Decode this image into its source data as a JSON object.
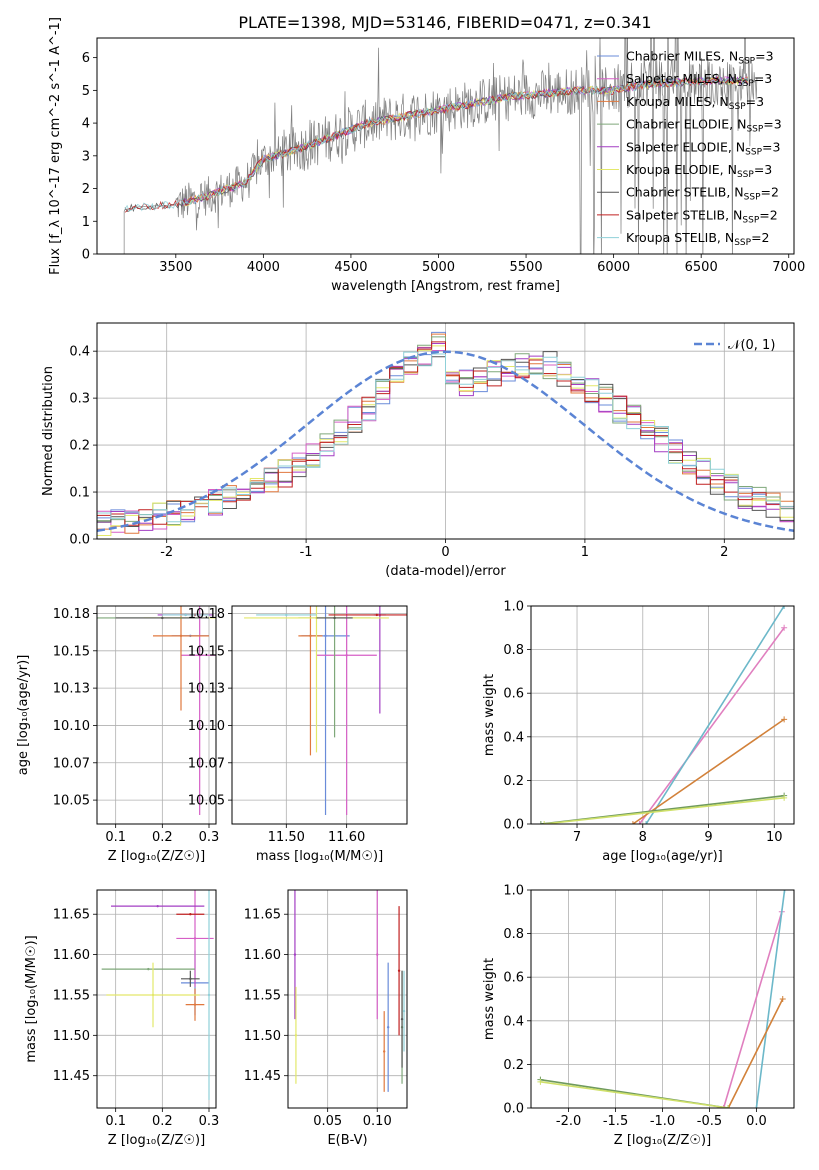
{
  "figure": {
    "title": "PLATE=1398, MJD=53146, FIBERID=0471, z=0.341"
  },
  "series_colors": [
    "#6a8bd9",
    "#d65fc6",
    "#e0783e",
    "#7fa87a",
    "#a33fc4",
    "#e3e86a",
    "#555555",
    "#c02020",
    "#8fd0d8"
  ],
  "chart_data": [
    {
      "panel": "spectrum",
      "type": "line",
      "title": "PLATE=1398, MJD=53146, FIBERID=0471, z=0.341",
      "xlabel": "wavelength [Angstrom, rest frame]",
      "ylabel": "Flux [f_λ 10^-17 erg cm^-2 s^-1 A^-1]",
      "xlim": [
        3050,
        7030
      ],
      "ylim": [
        0,
        6.6
      ],
      "xticks": [
        3500,
        4000,
        4500,
        5000,
        5500,
        6000,
        6500,
        7000
      ],
      "yticks": [
        0,
        1,
        2,
        3,
        4,
        5,
        6
      ],
      "legend_position": "right",
      "legend": [
        {
          "label": "Chabrier MILES, N",
          "sub": "SSP",
          "tail": "=3"
        },
        {
          "label": "Salpeter MILES, N",
          "sub": "SSP",
          "tail": "=3"
        },
        {
          "label": "Kroupa MILES, N",
          "sub": "SSP",
          "tail": "=3"
        },
        {
          "label": "Chabrier ELODIE, N",
          "sub": "SSP",
          "tail": "=3"
        },
        {
          "label": "Salpeter ELODIE, N",
          "sub": "SSP",
          "tail": "=3"
        },
        {
          "label": "Kroupa ELODIE, N",
          "sub": "SSP",
          "tail": "=3"
        },
        {
          "label": "Chabrier STELIB, N",
          "sub": "SSP",
          "tail": "=2"
        },
        {
          "label": "Salpeter STELIB, N",
          "sub": "SSP",
          "tail": "=2"
        },
        {
          "label": "Kroupa STELIB, N",
          "sub": "SSP",
          "tail": "=2"
        }
      ],
      "data_trend": [
        [
          3200,
          1.35
        ],
        [
          3300,
          1.45
        ],
        [
          3500,
          1.5
        ],
        [
          3700,
          1.8
        ],
        [
          3900,
          2.2
        ],
        [
          4000,
          2.9
        ],
        [
          4200,
          3.2
        ],
        [
          4400,
          3.6
        ],
        [
          4600,
          4.0
        ],
        [
          4800,
          4.2
        ],
        [
          5000,
          4.4
        ],
        [
          5200,
          4.6
        ],
        [
          5400,
          4.8
        ],
        [
          5600,
          4.9
        ],
        [
          5800,
          5.0
        ],
        [
          6000,
          5.0
        ],
        [
          6200,
          5.2
        ],
        [
          6400,
          5.25
        ],
        [
          6600,
          5.3
        ],
        [
          6800,
          5.3
        ]
      ]
    },
    {
      "panel": "residual_histogram",
      "type": "histogram",
      "xlabel": "(data-model)/error",
      "ylabel": "Normed distribution",
      "xlim": [
        -2.5,
        2.5
      ],
      "ylim": [
        0,
        0.46
      ],
      "xticks": [
        -2,
        -1,
        0,
        1,
        2
      ],
      "yticks": [
        0.0,
        0.1,
        0.2,
        0.3,
        0.4
      ],
      "legend_position": "top-right",
      "reference_curve": {
        "label": "𝒩(0, 1)",
        "mean": 0,
        "sigma": 1
      },
      "bin_width": 0.1,
      "base_histogram": [
        0.035,
        0.038,
        0.04,
        0.045,
        0.05,
        0.058,
        0.065,
        0.072,
        0.078,
        0.085,
        0.095,
        0.11,
        0.125,
        0.14,
        0.16,
        0.18,
        0.2,
        0.23,
        0.255,
        0.28,
        0.31,
        0.34,
        0.37,
        0.39,
        0.41,
        0.36,
        0.33,
        0.34,
        0.35,
        0.36,
        0.37,
        0.38,
        0.37,
        0.35,
        0.33,
        0.32,
        0.3,
        0.275,
        0.255,
        0.235,
        0.21,
        0.19,
        0.165,
        0.145,
        0.125,
        0.11,
        0.095,
        0.082,
        0.07,
        0.055
      ]
    },
    {
      "panel": "age_vs_Z",
      "type": "errorbar",
      "xlabel": "Z [log₁₀(Z/Z☉)]",
      "ylabel": "age  [log₁₀(age/yr)]",
      "xlim": [
        0.06,
        0.315
      ],
      "ylim": [
        10.034,
        10.18
      ],
      "xticks": [
        0.1,
        0.2,
        0.3
      ],
      "yticks": [
        10.05,
        10.075,
        10.1,
        10.125,
        10.15,
        10.175
      ],
      "points": [
        {
          "x": 0.26,
          "y": 10.16,
          "xerr": 0.04,
          "yerr": 0.0
        },
        {
          "x": 0.28,
          "y": 10.147,
          "xerr": 0.04,
          "yerr": 0.107
        },
        {
          "x": 0.24,
          "y": 10.16,
          "xerr": 0.06,
          "yerr": 0.05
        },
        {
          "x": 0.2,
          "y": 10.172,
          "xerr": 0.14,
          "yerr": 0.0
        },
        {
          "x": 0.25,
          "y": 10.174,
          "xerr": 0.06,
          "yerr": 0.0
        },
        {
          "x": 0.24,
          "y": 10.172,
          "xerr": 0.08,
          "yerr": 0.0
        },
        {
          "x": 0.2,
          "y": 10.172,
          "xerr": 0.1,
          "yerr": 0.0
        },
        {
          "x": 0.27,
          "y": 10.174,
          "xerr": 0.03,
          "yerr": 0.0
        },
        {
          "x": 0.25,
          "y": 10.174,
          "xerr": 0.05,
          "yerr": 0.0
        }
      ]
    },
    {
      "panel": "age_vs_mass",
      "type": "errorbar",
      "xlabel": "mass [log₁₀(M/M☉)]",
      "ylabel": "",
      "xlim": [
        11.41,
        11.7
      ],
      "ylim": [
        10.034,
        10.18
      ],
      "xticks": [
        11.5,
        11.6
      ],
      "yticks": [
        10.05,
        10.075,
        10.1,
        10.125,
        10.15,
        10.175
      ],
      "points": [
        {
          "x": 11.565,
          "y": 10.16,
          "xerr": 0.04,
          "yerr": 0.12
        },
        {
          "x": 11.6,
          "y": 10.147,
          "xerr": 0.05,
          "yerr": 0.107
        },
        {
          "x": 11.54,
          "y": 10.16,
          "xerr": 0.02,
          "yerr": 0.08
        },
        {
          "x": 11.58,
          "y": 10.172,
          "xerr": 0.06,
          "yerr": 0.08
        },
        {
          "x": 11.655,
          "y": 10.174,
          "xerr": 0.01,
          "yerr": 0.066
        },
        {
          "x": 11.55,
          "y": 10.172,
          "xerr": 0.12,
          "yerr": 0.09
        },
        {
          "x": 11.58,
          "y": 10.172,
          "xerr": 0.03,
          "yerr": 0.0
        },
        {
          "x": 11.65,
          "y": 10.174,
          "xerr": 0.08,
          "yerr": 0.0
        },
        {
          "x": 11.5,
          "y": 10.174,
          "xerr": 0.05,
          "yerr": 0.0
        }
      ]
    },
    {
      "panel": "mass_weight_vs_age",
      "type": "line",
      "xlabel": "age  [log₁₀(age/yr)]",
      "ylabel": "mass weight",
      "xlim": [
        6.3,
        10.3
      ],
      "ylim": [
        0,
        1
      ],
      "xticks": [
        7,
        8,
        9,
        10
      ],
      "yticks": [
        0.0,
        0.2,
        0.4,
        0.6,
        0.8,
        1.0
      ],
      "series": [
        {
          "points": [
            [
              7.95,
              0.0
            ],
            [
              10.15,
              0.9
            ]
          ]
        },
        {
          "points": [
            [
              8.05,
              0.0
            ],
            [
              10.15,
              1.0
            ]
          ]
        },
        {
          "points": [
            [
              7.85,
              0.0
            ],
            [
              10.15,
              0.48
            ]
          ]
        },
        {
          "points": [
            [
              6.45,
              0.0
            ],
            [
              10.15,
              0.13
            ]
          ]
        },
        {
          "points": [
            [
              6.5,
              0.0
            ],
            [
              10.15,
              0.12
            ]
          ]
        }
      ]
    },
    {
      "panel": "mass_vs_Z",
      "type": "errorbar",
      "xlabel": "Z [log₁₀(Z/Z☉)]",
      "ylabel": "mass [log₁₀(M/M☉)]",
      "xlim": [
        0.06,
        0.315
      ],
      "ylim": [
        11.41,
        11.68
      ],
      "xticks": [
        0.1,
        0.2,
        0.3
      ],
      "yticks": [
        11.45,
        11.5,
        11.55,
        11.6,
        11.65
      ],
      "points": [
        {
          "x": 0.27,
          "y": 11.565,
          "xerr": 0.03,
          "yerr": 0.04
        },
        {
          "x": 0.27,
          "y": 11.62,
          "xerr": 0.04,
          "yerr": 0.06
        },
        {
          "x": 0.27,
          "y": 11.538,
          "xerr": 0.02,
          "yerr": 0.02
        },
        {
          "x": 0.17,
          "y": 11.582,
          "xerr": 0.1,
          "yerr": 0.0
        },
        {
          "x": 0.19,
          "y": 11.66,
          "xerr": 0.1,
          "yerr": 0.0
        },
        {
          "x": 0.18,
          "y": 11.55,
          "xerr": 0.1,
          "yerr": 0.04
        },
        {
          "x": 0.26,
          "y": 11.57,
          "xerr": 0.02,
          "yerr": 0.01
        },
        {
          "x": 0.26,
          "y": 11.65,
          "xerr": 0.03,
          "yerr": 0.0
        },
        {
          "x": 0.3,
          "y": 11.55,
          "xerr": 0.0,
          "yerr": 0.13
        }
      ]
    },
    {
      "panel": "mass_vs_ebv",
      "type": "errorbar",
      "xlabel": "E(B-V)",
      "ylabel": "",
      "xlim": [
        0.01,
        0.13
      ],
      "ylim": [
        11.41,
        11.68
      ],
      "xticks": [
        0.05,
        0.1
      ],
      "yticks": [
        11.45,
        11.5,
        11.55,
        11.6,
        11.65
      ],
      "points": [
        {
          "x": 0.111,
          "y": 11.51,
          "xerr": 0.0,
          "yerr": 0.08
        },
        {
          "x": 0.1,
          "y": 11.6,
          "xerr": 0.0,
          "yerr": 0.08
        },
        {
          "x": 0.107,
          "y": 11.48,
          "xerr": 0.0,
          "yerr": 0.05
        },
        {
          "x": 0.125,
          "y": 11.51,
          "xerr": 0.0,
          "yerr": 0.07
        },
        {
          "x": 0.017,
          "y": 11.6,
          "xerr": 0.0,
          "yerr": 0.08
        },
        {
          "x": 0.018,
          "y": 11.5,
          "xerr": 0.0,
          "yerr": 0.06
        },
        {
          "x": 0.125,
          "y": 11.52,
          "xerr": 0.0,
          "yerr": 0.06
        },
        {
          "x": 0.122,
          "y": 11.58,
          "xerr": 0.0,
          "yerr": 0.08
        },
        {
          "x": 0.127,
          "y": 11.53,
          "xerr": 0.0,
          "yerr": 0.05
        }
      ]
    },
    {
      "panel": "mass_weight_vs_Z",
      "type": "line",
      "xlabel": "Z [log₁₀(Z/Z☉)]",
      "ylabel": "mass weight",
      "xlim": [
        -2.4,
        0.4
      ],
      "ylim": [
        0,
        1
      ],
      "xticks": [
        -2.0,
        -1.5,
        -1.0,
        -0.5,
        0.0
      ],
      "yticks": [
        0.0,
        0.2,
        0.4,
        0.6,
        0.8,
        1.0
      ],
      "series": [
        {
          "points": [
            [
              -0.35,
              0.0
            ],
            [
              0.27,
              0.9
            ]
          ]
        },
        {
          "points": [
            [
              0.0,
              0.0
            ],
            [
              0.3,
              1.0
            ]
          ]
        },
        {
          "points": [
            [
              -0.3,
              0.0
            ],
            [
              0.28,
              0.5
            ]
          ]
        },
        {
          "points": [
            [
              -2.3,
              0.13
            ],
            [
              -0.3,
              0.0
            ]
          ]
        },
        {
          "points": [
            [
              -2.3,
              0.12
            ],
            [
              -0.3,
              0.0
            ]
          ]
        }
      ]
    }
  ]
}
